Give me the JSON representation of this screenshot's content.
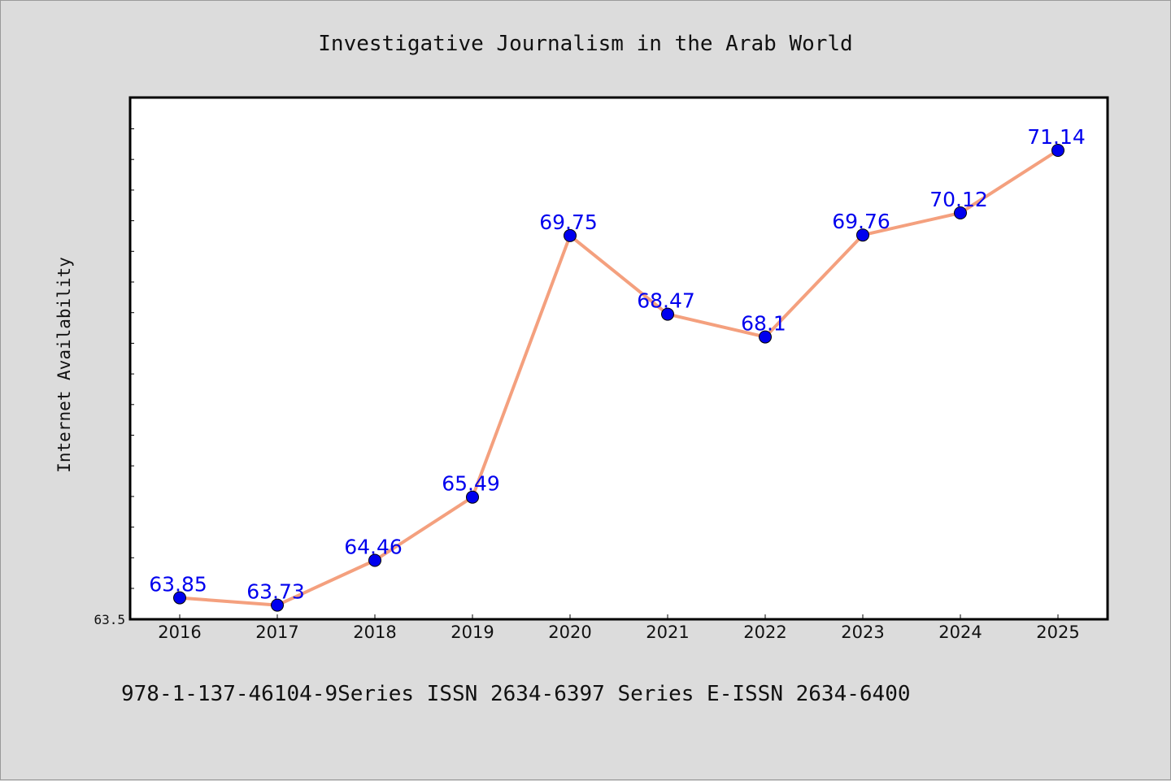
{
  "chart_data": {
    "type": "line",
    "title": "Investigative Journalism in the Arab World",
    "xlabel": "",
    "ylabel": "Internet Availability",
    "footer": "978-1-137-46104-9Series ISSN 2634-6397 Series E-ISSN 2634-6400",
    "categories": [
      "2016",
      "2017",
      "2018",
      "2019",
      "2020",
      "2021",
      "2022",
      "2023",
      "2024",
      "2025"
    ],
    "values": [
      63.85,
      63.73,
      64.46,
      65.49,
      69.75,
      68.47,
      68.1,
      69.76,
      70.12,
      71.14
    ],
    "value_labels": [
      "63.85",
      "63.73",
      "64.46",
      "65.49",
      "69.75",
      "68.47",
      "68.1",
      "69.76",
      "70.12",
      "71.14"
    ],
    "ylim": [
      63.5,
      72.0
    ],
    "yticks": [
      63.5
    ],
    "ytick_labels": [
      "63.5"
    ],
    "grid": false,
    "legend": "none",
    "colors": {
      "line": "#f4a07e",
      "marker": "#0000ee",
      "labels": "#0000ee",
      "background": "#dcdcdc",
      "plot_background": "#ffffff"
    }
  }
}
